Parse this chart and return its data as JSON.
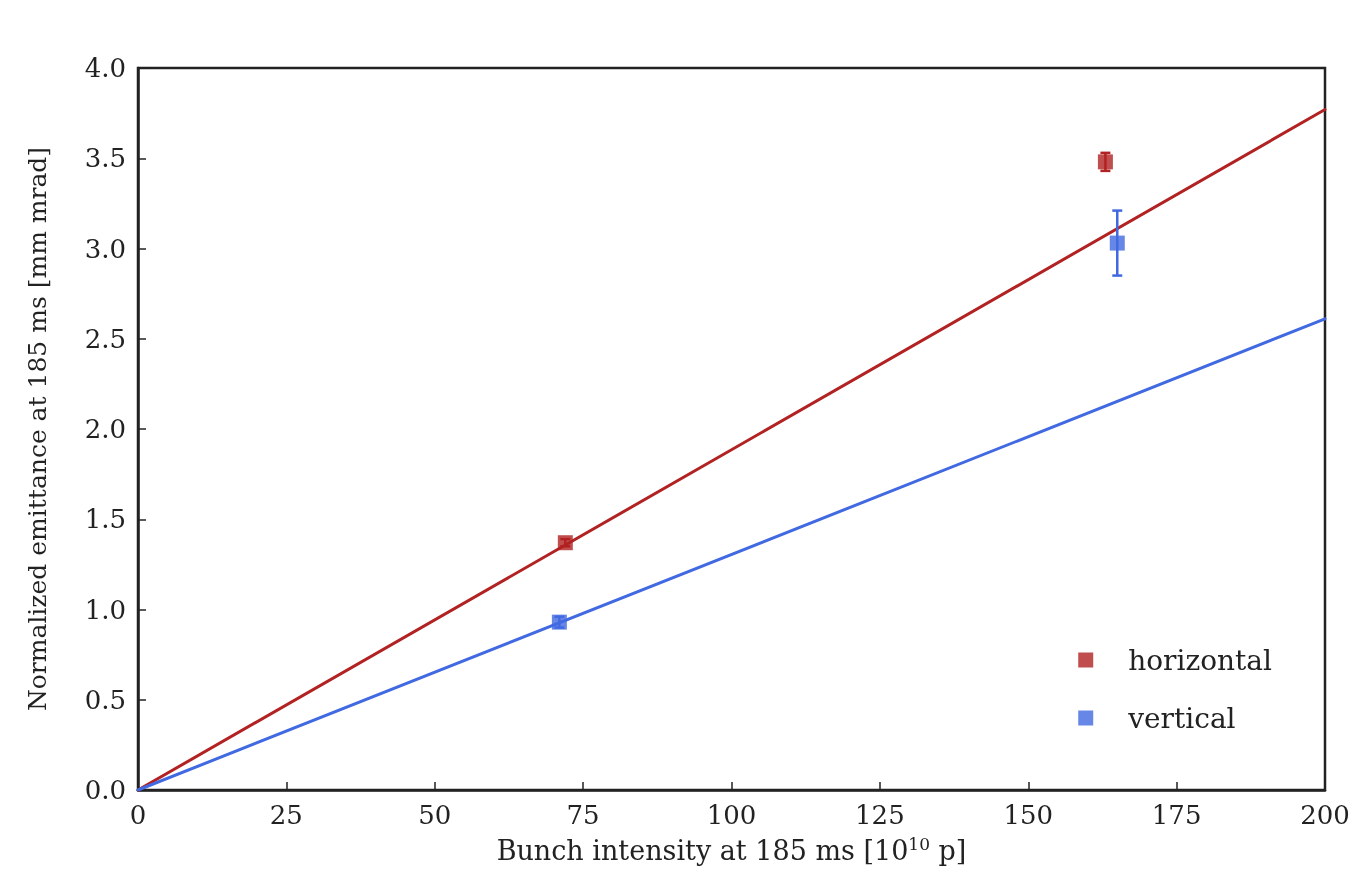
{
  "chart_data": {
    "type": "scatter",
    "xlabel": "Bunch intensity at 185 ms [10$^{10}$ p]",
    "ylabel": "Normalized emittance at 185 ms [mm mrad]",
    "xlim": [
      0,
      200
    ],
    "xticks": [
      0,
      25,
      50,
      75,
      100,
      125,
      150,
      175,
      200
    ],
    "ylim": [
      0,
      4
    ],
    "yticks": [
      {
        "value": 0,
        "label": "0.0"
      },
      {
        "value": 0.5,
        "label": "0.5"
      },
      {
        "value": 1,
        "label": "1.0"
      },
      {
        "value": 1.5,
        "label": "1.5"
      },
      {
        "value": 2,
        "label": "2.0"
      },
      {
        "value": 2.5,
        "label": "2.5"
      },
      {
        "value": 3,
        "label": "3.0"
      },
      {
        "value": 3.5,
        "label": "3.5"
      },
      {
        "value": 4,
        "label": "4.0"
      }
    ],
    "grid": false,
    "legend": "bottom right",
    "marker": "square",
    "series": [
      {
        "name": "horizontal",
        "color": "#b22222",
        "x": [
          72,
          163
        ],
        "values": [
          1.37,
          3.48
        ],
        "errors": [
          0.02,
          0.05
        ]
      },
      {
        "name": "vertical",
        "color": "#4169e1",
        "x": [
          71,
          165
        ],
        "values": [
          0.93,
          3.03
        ],
        "errors": [
          0.03,
          0.18
        ]
      },
      {
        "type": "line",
        "color": "#b22222",
        "x": [
          0,
          200
        ],
        "values": [
          0,
          3.77
        ],
        "marker": "none",
        "line_style": "solid"
      },
      {
        "type": "line",
        "color": "#4169e1",
        "x": [
          0,
          200
        ],
        "values": [
          0,
          2.61
        ],
        "marker": "none",
        "line_style": "solid"
      }
    ]
  }
}
